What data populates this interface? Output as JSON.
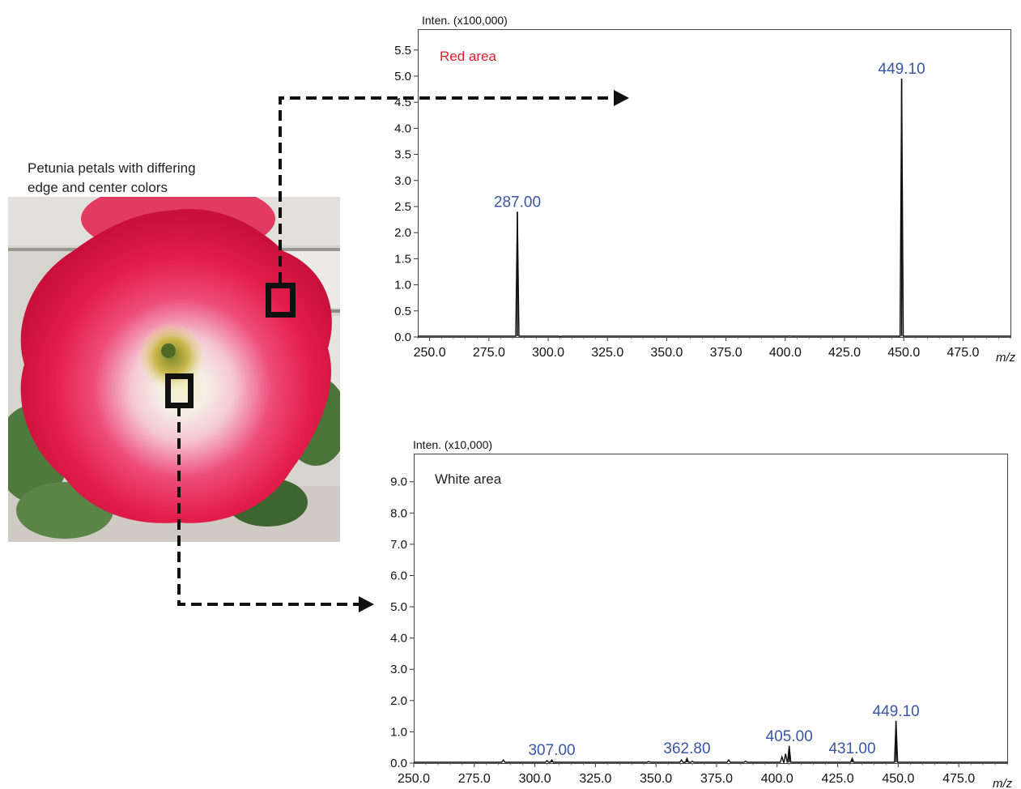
{
  "photo": {
    "caption_lines": [
      "Petunia petals with differing",
      "edge and center colors"
    ]
  },
  "colors": {
    "peak_label": "#3a55a4",
    "red_area_label": "#e0202a",
    "trace": "#111111",
    "petal": "#e8204a"
  },
  "chart_data": [
    {
      "type": "line",
      "annotation": "Red area",
      "ylabel": "Inten. (x100,000)",
      "xlabel": "m/z",
      "xlim": [
        245,
        495
      ],
      "ylim": [
        0,
        5.9
      ],
      "x_ticks": [
        "250.0",
        "275.0",
        "300.0",
        "325.0",
        "350.0",
        "375.0",
        "400.0",
        "425.0",
        "450.0",
        "475.0"
      ],
      "y_ticks": [
        "0.0",
        "0.5",
        "1.0",
        "1.5",
        "2.0",
        "2.5",
        "3.0",
        "3.5",
        "4.0",
        "4.5",
        "5.0",
        "5.5"
      ],
      "peaks": [
        {
          "x": 287.0,
          "y": 2.4,
          "label": "287.00"
        },
        {
          "x": 449.1,
          "y": 4.95,
          "label": "449.10"
        }
      ],
      "minor_peaks": [
        {
          "x": 305.0,
          "y": 0.01
        },
        {
          "x": 402.0,
          "y": 0.02
        }
      ]
    },
    {
      "type": "line",
      "annotation": "White area",
      "ylabel": "Inten. (x10,000)",
      "xlabel": "m/z",
      "xlim": [
        250,
        495
      ],
      "ylim": [
        0,
        9.9
      ],
      "x_ticks": [
        "250.0",
        "275.0",
        "300.0",
        "325.0",
        "350.0",
        "375.0",
        "400.0",
        "425.0",
        "450.0",
        "475.0"
      ],
      "y_ticks": [
        "0.0",
        "1.0",
        "2.0",
        "3.0",
        "4.0",
        "5.0",
        "6.0",
        "7.0",
        "8.0",
        "9.0"
      ],
      "peaks": [
        {
          "x": 307.0,
          "y": 0.1,
          "label": "307.00"
        },
        {
          "x": 362.8,
          "y": 0.15,
          "label": "362.80"
        },
        {
          "x": 405.0,
          "y": 0.55,
          "label": "405.00"
        },
        {
          "x": 431.0,
          "y": 0.15,
          "label": "431.00"
        },
        {
          "x": 449.1,
          "y": 1.35,
          "label": "449.10"
        }
      ],
      "minor_peaks": [
        {
          "x": 287.0,
          "y": 0.1
        },
        {
          "x": 305.0,
          "y": 0.08
        },
        {
          "x": 347.0,
          "y": 0.05
        },
        {
          "x": 360.5,
          "y": 0.1
        },
        {
          "x": 365.0,
          "y": 0.06
        },
        {
          "x": 380.0,
          "y": 0.1
        },
        {
          "x": 387.0,
          "y": 0.06
        },
        {
          "x": 402.0,
          "y": 0.2
        },
        {
          "x": 403.5,
          "y": 0.3
        }
      ]
    }
  ]
}
